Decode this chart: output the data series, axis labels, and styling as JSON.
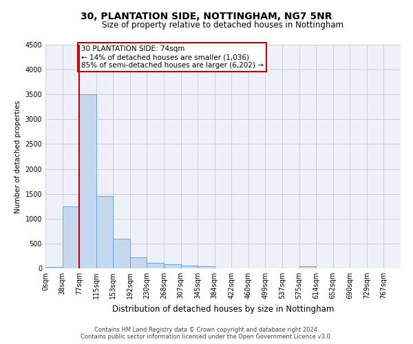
{
  "title": "30, PLANTATION SIDE, NOTTINGHAM, NG7 5NR",
  "subtitle": "Size of property relative to detached houses in Nottingham",
  "xlabel": "Distribution of detached houses by size in Nottingham",
  "ylabel": "Number of detached properties",
  "footer_line1": "Contains HM Land Registry data © Crown copyright and database right 2024.",
  "footer_line2": "Contains public sector information licensed under the Open Government Licence v3.0.",
  "bar_labels": [
    "0sqm",
    "38sqm",
    "77sqm",
    "115sqm",
    "153sqm",
    "192sqm",
    "230sqm",
    "268sqm",
    "307sqm",
    "345sqm",
    "384sqm",
    "422sqm",
    "460sqm",
    "499sqm",
    "537sqm",
    "575sqm",
    "614sqm",
    "652sqm",
    "690sqm",
    "729sqm",
    "767sqm"
  ],
  "bar_values": [
    30,
    1250,
    3500,
    1450,
    600,
    220,
    115,
    85,
    55,
    40,
    5,
    0,
    0,
    0,
    0,
    40,
    0,
    0,
    0,
    0,
    0
  ],
  "bar_color": "#c5d8f0",
  "bar_edge_color": "#5a9fd4",
  "grid_color": "#c8d0e0",
  "background_color": "#eef2f8",
  "ylim": [
    0,
    4500
  ],
  "yticks": [
    0,
    500,
    1000,
    1500,
    2000,
    2500,
    3000,
    3500,
    4000,
    4500
  ],
  "red_line_bin": 2,
  "red_line_color": "#cc0000",
  "annotation_text": "30 PLANTATION SIDE: 74sqm\n← 14% of detached houses are smaller (1,036)\n85% of semi-detached houses are larger (6,202) →",
  "annotation_box_color": "#ffffff",
  "annotation_box_edge_color": "#cc0000",
  "title_fontsize": 10,
  "subtitle_fontsize": 8.5,
  "ylabel_fontsize": 7.5,
  "xlabel_fontsize": 8.5,
  "tick_fontsize": 7,
  "annotation_fontsize": 7.5,
  "footer_fontsize": 6
}
